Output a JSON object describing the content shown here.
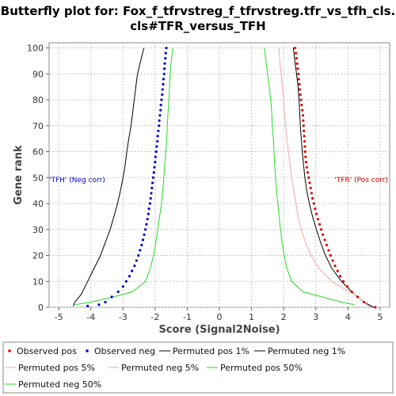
{
  "chart_data": {
    "type": "scatter",
    "title": "Butterfly plot for: Fox_f_tfrvstreg_f_tfrvstreg.tfr_vs_tfh_cls.",
    "subtitle": "cls#TFR_versus_TFH",
    "xlabel": "Score (Signal2Noise)",
    "ylabel": "Gene rank",
    "xlim": [
      -5.3,
      5.3
    ],
    "ylim": [
      0,
      102
    ],
    "xticks": [
      -5,
      -4,
      -3,
      -2,
      -1,
      0,
      1,
      2,
      3,
      4,
      5
    ],
    "yticks": [
      0,
      10,
      20,
      30,
      40,
      50,
      60,
      70,
      80,
      90,
      100
    ],
    "grid": true,
    "annotations": [
      {
        "text": "'TFH' (Neg corr)",
        "x": -4.2,
        "y": 50,
        "color": "#0000cc"
      },
      {
        "text": "'TFR' (Pos corr)",
        "x": 4.2,
        "y": 50,
        "color": "#cc0000"
      }
    ],
    "series": [
      {
        "name": "Observed pos",
        "kind": "points",
        "color": "#e00000",
        "points": [
          [
            2.35,
            100
          ],
          [
            2.38,
            98
          ],
          [
            2.4,
            96
          ],
          [
            2.42,
            94
          ],
          [
            2.44,
            92
          ],
          [
            2.46,
            90
          ],
          [
            2.47,
            88
          ],
          [
            2.49,
            86
          ],
          [
            2.5,
            84
          ],
          [
            2.52,
            82
          ],
          [
            2.54,
            80
          ],
          [
            2.56,
            78
          ],
          [
            2.58,
            76
          ],
          [
            2.6,
            74
          ],
          [
            2.61,
            72
          ],
          [
            2.62,
            70
          ],
          [
            2.63,
            68
          ],
          [
            2.64,
            66
          ],
          [
            2.65,
            64
          ],
          [
            2.66,
            62
          ],
          [
            2.67,
            60
          ],
          [
            2.68,
            58
          ],
          [
            2.7,
            56
          ],
          [
            2.72,
            54
          ],
          [
            2.75,
            52
          ],
          [
            2.78,
            50
          ],
          [
            2.81,
            48
          ],
          [
            2.84,
            46
          ],
          [
            2.87,
            44
          ],
          [
            2.9,
            42
          ],
          [
            2.94,
            40
          ],
          [
            2.98,
            38
          ],
          [
            3.02,
            36
          ],
          [
            3.07,
            34
          ],
          [
            3.12,
            32
          ],
          [
            3.17,
            30
          ],
          [
            3.22,
            28
          ],
          [
            3.28,
            26
          ],
          [
            3.34,
            24
          ],
          [
            3.4,
            22
          ],
          [
            3.46,
            20
          ],
          [
            3.53,
            18
          ],
          [
            3.6,
            16
          ],
          [
            3.68,
            14
          ],
          [
            3.76,
            12
          ],
          [
            3.86,
            10
          ],
          [
            3.98,
            8
          ],
          [
            4.12,
            6
          ],
          [
            4.3,
            4
          ],
          [
            4.5,
            2
          ],
          [
            4.85,
            0
          ]
        ]
      },
      {
        "name": "Observed neg",
        "kind": "points",
        "color": "#0000cc",
        "points": [
          [
            -1.65,
            100
          ],
          [
            -1.67,
            98
          ],
          [
            -1.68,
            96
          ],
          [
            -1.7,
            94
          ],
          [
            -1.71,
            92
          ],
          [
            -1.72,
            90
          ],
          [
            -1.74,
            88
          ],
          [
            -1.75,
            86
          ],
          [
            -1.77,
            84
          ],
          [
            -1.78,
            82
          ],
          [
            -1.8,
            80
          ],
          [
            -1.82,
            78
          ],
          [
            -1.83,
            76
          ],
          [
            -1.85,
            74
          ],
          [
            -1.87,
            72
          ],
          [
            -1.88,
            70
          ],
          [
            -1.9,
            68
          ],
          [
            -1.92,
            66
          ],
          [
            -1.93,
            64
          ],
          [
            -1.95,
            62
          ],
          [
            -1.97,
            60
          ],
          [
            -1.99,
            58
          ],
          [
            -2.0,
            56
          ],
          [
            -2.02,
            54
          ],
          [
            -2.04,
            52
          ],
          [
            -2.06,
            50
          ],
          [
            -2.08,
            48
          ],
          [
            -2.1,
            46
          ],
          [
            -2.12,
            44
          ],
          [
            -2.14,
            42
          ],
          [
            -2.16,
            40
          ],
          [
            -2.19,
            38
          ],
          [
            -2.21,
            36
          ],
          [
            -2.24,
            34
          ],
          [
            -2.27,
            32
          ],
          [
            -2.3,
            30
          ],
          [
            -2.34,
            28
          ],
          [
            -2.38,
            26
          ],
          [
            -2.42,
            24
          ],
          [
            -2.47,
            22
          ],
          [
            -2.52,
            20
          ],
          [
            -2.58,
            18
          ],
          [
            -2.64,
            16
          ],
          [
            -2.72,
            14
          ],
          [
            -2.8,
            12
          ],
          [
            -2.9,
            10
          ],
          [
            -3.0,
            8
          ],
          [
            -3.15,
            6
          ],
          [
            -3.35,
            4
          ],
          [
            -3.55,
            2
          ],
          [
            -3.75,
            1
          ],
          [
            -4.1,
            0.5
          ]
        ]
      },
      {
        "name": "Permuted pos 1%",
        "kind": "line",
        "color": "#000000",
        "points": [
          [
            2.3,
            100
          ],
          [
            2.35,
            95
          ],
          [
            2.4,
            90
          ],
          [
            2.45,
            85
          ],
          [
            2.48,
            80
          ],
          [
            2.5,
            75
          ],
          [
            2.52,
            70
          ],
          [
            2.55,
            65
          ],
          [
            2.58,
            60
          ],
          [
            2.62,
            55
          ],
          [
            2.66,
            50
          ],
          [
            2.72,
            45
          ],
          [
            2.8,
            40
          ],
          [
            2.9,
            35
          ],
          [
            3.02,
            30
          ],
          [
            3.15,
            25
          ],
          [
            3.3,
            20
          ],
          [
            3.5,
            15
          ],
          [
            3.8,
            10
          ],
          [
            4.2,
            5
          ],
          [
            4.5,
            2
          ],
          [
            4.8,
            0
          ]
        ]
      },
      {
        "name": "Permuted neg 1%",
        "kind": "line",
        "color": "#000000",
        "points": [
          [
            -2.35,
            100
          ],
          [
            -2.45,
            95
          ],
          [
            -2.55,
            90
          ],
          [
            -2.6,
            85
          ],
          [
            -2.65,
            80
          ],
          [
            -2.7,
            75
          ],
          [
            -2.75,
            70
          ],
          [
            -2.82,
            65
          ],
          [
            -2.88,
            60
          ],
          [
            -2.93,
            55
          ],
          [
            -3.0,
            50
          ],
          [
            -3.08,
            45
          ],
          [
            -3.17,
            40
          ],
          [
            -3.28,
            35
          ],
          [
            -3.4,
            30
          ],
          [
            -3.55,
            25
          ],
          [
            -3.7,
            20
          ],
          [
            -3.9,
            15
          ],
          [
            -4.1,
            10
          ],
          [
            -4.3,
            5
          ],
          [
            -4.5,
            2
          ],
          [
            -4.55,
            0.5
          ]
        ]
      },
      {
        "name": "Permuted pos 5%",
        "kind": "line",
        "color": "#f4a6a6",
        "points": [
          [
            1.85,
            100
          ],
          [
            1.88,
            95
          ],
          [
            1.92,
            90
          ],
          [
            1.96,
            85
          ],
          [
            2.0,
            80
          ],
          [
            2.03,
            75
          ],
          [
            2.06,
            70
          ],
          [
            2.1,
            65
          ],
          [
            2.15,
            60
          ],
          [
            2.2,
            55
          ],
          [
            2.25,
            50
          ],
          [
            2.32,
            45
          ],
          [
            2.38,
            40
          ],
          [
            2.45,
            35
          ],
          [
            2.55,
            30
          ],
          [
            2.68,
            25
          ],
          [
            2.85,
            20
          ],
          [
            3.1,
            15
          ],
          [
            3.5,
            10
          ],
          [
            3.9,
            7
          ],
          [
            4.2,
            5
          ],
          [
            4.5,
            2
          ],
          [
            4.7,
            0
          ]
        ]
      },
      {
        "name": "Permuted neg 5%",
        "kind": "line",
        "color": "#f4a6a6",
        "points": []
      },
      {
        "name": "Permuted pos 50%",
        "kind": "line",
        "color": "#22dd22",
        "points": [
          [
            1.4,
            100
          ],
          [
            1.45,
            95
          ],
          [
            1.5,
            90
          ],
          [
            1.55,
            85
          ],
          [
            1.6,
            80
          ],
          [
            1.63,
            75
          ],
          [
            1.65,
            70
          ],
          [
            1.68,
            65
          ],
          [
            1.7,
            60
          ],
          [
            1.72,
            55
          ],
          [
            1.75,
            50
          ],
          [
            1.78,
            45
          ],
          [
            1.82,
            40
          ],
          [
            1.86,
            35
          ],
          [
            1.9,
            30
          ],
          [
            1.95,
            25
          ],
          [
            2.02,
            20
          ],
          [
            2.1,
            15
          ],
          [
            2.25,
            10
          ],
          [
            2.6,
            6
          ],
          [
            3.2,
            4
          ],
          [
            3.8,
            2
          ],
          [
            4.2,
            1
          ]
        ]
      },
      {
        "name": "Permuted neg 50%",
        "kind": "line",
        "color": "#22dd22",
        "points": [
          [
            -1.45,
            100
          ],
          [
            -1.5,
            95
          ],
          [
            -1.53,
            90
          ],
          [
            -1.55,
            85
          ],
          [
            -1.57,
            80
          ],
          [
            -1.6,
            75
          ],
          [
            -1.62,
            70
          ],
          [
            -1.64,
            65
          ],
          [
            -1.67,
            60
          ],
          [
            -1.7,
            55
          ],
          [
            -1.73,
            50
          ],
          [
            -1.76,
            45
          ],
          [
            -1.8,
            40
          ],
          [
            -1.86,
            35
          ],
          [
            -1.92,
            30
          ],
          [
            -1.98,
            25
          ],
          [
            -2.05,
            20
          ],
          [
            -2.15,
            15
          ],
          [
            -2.3,
            10
          ],
          [
            -2.7,
            6
          ],
          [
            -3.3,
            4
          ],
          [
            -4.0,
            2
          ],
          [
            -4.5,
            1
          ]
        ]
      }
    ],
    "legend": {
      "placement": "bottom",
      "items": [
        {
          "label": "Observed pos",
          "marker": "dot",
          "color": "#e00000"
        },
        {
          "label": "Observed neg",
          "marker": "dot",
          "color": "#0000cc"
        },
        {
          "label": "Permuted pos 1%",
          "marker": "line",
          "color": "#000000"
        },
        {
          "label": "Permuted neg 1%",
          "marker": "line",
          "color": "#000000"
        },
        {
          "label": "Permuted pos 5%",
          "marker": "line",
          "color": "#f4a6a6"
        },
        {
          "label": "Permuted neg 5%",
          "marker": "line",
          "color": "#f4a6a6"
        },
        {
          "label": "Permuted pos 50%",
          "marker": "line",
          "color": "#22dd22"
        },
        {
          "label": "Permuted neg 50%",
          "marker": "line",
          "color": "#22dd22"
        }
      ]
    }
  }
}
